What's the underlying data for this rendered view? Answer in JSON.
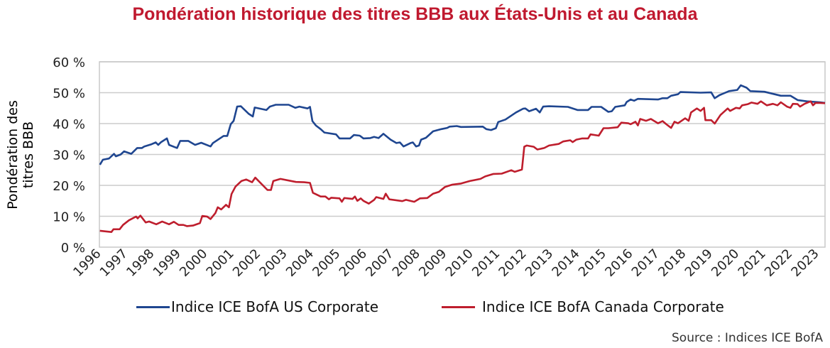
{
  "chart_data": {
    "type": "line",
    "title": "Pondération historique des titres BBB aux États-Unis et au Canada",
    "ylabel": [
      "Pondération des",
      "titres BBB"
    ],
    "xlabel": "",
    "ylim": [
      0,
      60
    ],
    "xlim": [
      1996,
      2023.29
    ],
    "yticks": [
      0,
      10,
      20,
      30,
      40,
      50,
      60
    ],
    "ytick_labels": [
      "0 %",
      "10 %",
      "20 %",
      "30 %",
      "40 %",
      "50 %",
      "60 %"
    ],
    "xtick_labels": [
      "1996",
      "1997",
      "1998",
      "1999",
      "2000",
      "2001",
      "2002",
      "2003",
      "2004",
      "2005",
      "2006",
      "2007",
      "2008",
      "2009",
      "2010",
      "2011",
      "2012",
      "2013",
      "2014",
      "2015",
      "2016",
      "2017",
      "2018",
      "2019",
      "2020",
      "2021",
      "2022",
      "2023"
    ],
    "grid": true,
    "legend_position": "bottom",
    "source": "Source : Indices ICE BofA",
    "series": [
      {
        "name": "Indice ICE BofA US Corporate",
        "color": "#1f4690",
        "x": [
          1996.02,
          1996.13,
          1996.36,
          1996.55,
          1996.62,
          1996.8,
          1996.93,
          1997.2,
          1997.42,
          1997.6,
          1997.69,
          1997.96,
          1998.12,
          1998.21,
          1998.32,
          1998.54,
          1998.62,
          1998.92,
          1999.04,
          1999.34,
          1999.6,
          1999.83,
          2000.18,
          2000.27,
          2000.67,
          2000.81,
          2000.94,
          2001.05,
          2001.18,
          2001.32,
          2001.61,
          2001.77,
          2001.84,
          2002.28,
          2002.41,
          2002.63,
          2003.12,
          2003.37,
          2003.52,
          2003.83,
          2003.92,
          2004.01,
          2004.14,
          2004.32,
          2004.46,
          2004.9,
          2005.03,
          2005.43,
          2005.57,
          2005.79,
          2005.93,
          2006.19,
          2006.33,
          2006.5,
          2006.68,
          2006.95,
          2007.17,
          2007.3,
          2007.44,
          2007.7,
          2007.79,
          2007.91,
          2008.02,
          2008.1,
          2008.28,
          2008.55,
          2008.86,
          2009.08,
          2009.17,
          2009.44,
          2009.6,
          2010.42,
          2010.55,
          2010.73,
          2010.91,
          2011.0,
          2011.27,
          2011.67,
          2011.93,
          2012.02,
          2012.16,
          2012.42,
          2012.56,
          2012.69,
          2012.91,
          2013.62,
          2013.98,
          2014.38,
          2014.51,
          2014.87,
          2015.14,
          2015.27,
          2015.4,
          2015.76,
          2015.83,
          2015.98,
          2016.11,
          2016.25,
          2017.01,
          2017.18,
          2017.36,
          2017.5,
          2017.76,
          2017.85,
          2018.61,
          2019.01,
          2019.14,
          2019.32,
          2019.68,
          2019.99,
          2020.12,
          2020.34,
          2020.48,
          2021.01,
          2021.63,
          2021.99,
          2022.26,
          2022.61,
          2023.1,
          2023.29
        ],
        "y": [
          26.7,
          28.3,
          28.7,
          30.2,
          29.4,
          30.0,
          31.0,
          30.2,
          32.1,
          32.1,
          32.6,
          33.3,
          33.9,
          33.1,
          34.0,
          35.2,
          33.1,
          32.1,
          34.4,
          34.4,
          33.1,
          33.8,
          32.6,
          33.7,
          36.0,
          36.0,
          39.8,
          40.9,
          45.5,
          45.6,
          43.2,
          42.3,
          45.2,
          44.4,
          45.5,
          46.1,
          46.1,
          45.1,
          45.5,
          44.9,
          45.4,
          40.8,
          39.4,
          38.2,
          37.1,
          36.5,
          35.2,
          35.2,
          36.3,
          36.1,
          35.2,
          35.3,
          35.7,
          35.3,
          36.7,
          34.8,
          33.7,
          33.9,
          32.6,
          33.7,
          33.9,
          32.6,
          32.9,
          34.8,
          35.4,
          37.5,
          38.2,
          38.6,
          39.0,
          39.2,
          38.9,
          39.0,
          38.2,
          37.9,
          38.5,
          40.5,
          41.3,
          43.6,
          44.8,
          44.9,
          44.0,
          44.8,
          43.6,
          45.5,
          45.6,
          45.4,
          44.4,
          44.4,
          45.4,
          45.4,
          43.8,
          44.0,
          45.4,
          45.9,
          47.0,
          47.8,
          47.4,
          48.0,
          47.8,
          48.2,
          48.2,
          49.0,
          49.5,
          50.2,
          50.0,
          50.1,
          48.2,
          49.2,
          50.5,
          50.9,
          52.4,
          51.6,
          50.5,
          50.3,
          49.0,
          49.0,
          47.6,
          47.2,
          46.9,
          46.7
        ]
      },
      {
        "name": "Indice ICE BofA Canada Corporate",
        "color": "#be1e2d",
        "x": [
          1996.02,
          1996.45,
          1996.53,
          1996.76,
          1996.89,
          1997.11,
          1997.38,
          1997.44,
          1997.54,
          1997.74,
          1997.87,
          1998.14,
          1998.36,
          1998.62,
          1998.8,
          1998.98,
          1999.16,
          1999.29,
          1999.52,
          1999.78,
          1999.87,
          2000.05,
          2000.18,
          2000.36,
          2000.45,
          2000.58,
          2000.76,
          2000.87,
          2000.97,
          2001.12,
          2001.34,
          2001.52,
          2001.74,
          2001.86,
          2002.32,
          2002.45,
          2002.54,
          2002.81,
          2003.39,
          2003.7,
          2003.92,
          2004.03,
          2004.32,
          2004.5,
          2004.63,
          2004.72,
          2005.03,
          2005.12,
          2005.21,
          2005.52,
          2005.61,
          2005.7,
          2005.83,
          2005.93,
          2006.13,
          2006.33,
          2006.41,
          2006.68,
          2006.77,
          2006.9,
          2007.39,
          2007.53,
          2007.84,
          2008.06,
          2008.33,
          2008.55,
          2008.77,
          2009.0,
          2009.26,
          2009.6,
          2009.93,
          2010.33,
          2010.51,
          2010.82,
          2011.13,
          2011.49,
          2011.62,
          2011.89,
          2011.98,
          2012.07,
          2012.33,
          2012.47,
          2012.73,
          2012.91,
          2013.27,
          2013.44,
          2013.71,
          2013.8,
          2013.94,
          2014.16,
          2014.38,
          2014.47,
          2014.78,
          2014.96,
          2015.14,
          2015.49,
          2015.63,
          2015.89,
          2015.98,
          2016.16,
          2016.25,
          2016.34,
          2016.56,
          2016.74,
          2017.01,
          2017.18,
          2017.32,
          2017.5,
          2017.63,
          2017.76,
          2018.03,
          2018.16,
          2018.25,
          2018.47,
          2018.61,
          2018.74,
          2018.79,
          2019.01,
          2019.14,
          2019.36,
          2019.63,
          2019.72,
          2019.94,
          2020.08,
          2020.17,
          2020.39,
          2020.52,
          2020.75,
          2020.88,
          2021.1,
          2021.33,
          2021.5,
          2021.63,
          2021.86,
          2021.99,
          2022.08,
          2022.26,
          2022.35,
          2022.52,
          2022.75,
          2022.84,
          2022.93,
          2023.1,
          2023.29
        ],
        "y": [
          5.3,
          4.9,
          5.8,
          5.8,
          7.2,
          8.7,
          9.9,
          9.3,
          10.2,
          8.0,
          8.3,
          7.4,
          8.3,
          7.4,
          8.2,
          7.2,
          7.2,
          6.8,
          7.0,
          7.8,
          10.1,
          9.9,
          9.1,
          11.0,
          12.9,
          12.2,
          13.7,
          12.9,
          17.2,
          19.6,
          21.4,
          21.9,
          21.0,
          22.5,
          18.5,
          18.5,
          21.4,
          22.1,
          21.1,
          21.0,
          20.8,
          17.6,
          16.4,
          16.4,
          15.5,
          16.0,
          15.8,
          14.7,
          15.9,
          15.6,
          16.4,
          15.0,
          15.8,
          15.0,
          14.1,
          15.3,
          16.2,
          15.6,
          17.3,
          15.5,
          14.9,
          15.3,
          14.7,
          15.8,
          15.9,
          17.3,
          17.9,
          19.5,
          20.2,
          20.6,
          21.4,
          22.1,
          22.9,
          23.7,
          23.8,
          24.9,
          24.4,
          25.1,
          32.5,
          32.9,
          32.5,
          31.6,
          32.1,
          32.9,
          33.4,
          34.2,
          34.6,
          34.0,
          34.8,
          35.2,
          35.2,
          36.5,
          36.1,
          38.5,
          38.5,
          38.8,
          40.3,
          40.1,
          39.8,
          40.6,
          39.4,
          41.5,
          40.9,
          41.5,
          40.1,
          40.8,
          39.8,
          38.6,
          40.6,
          40.1,
          41.7,
          40.9,
          43.6,
          44.9,
          44.1,
          45.1,
          41.1,
          41.1,
          40.0,
          42.8,
          44.9,
          44.1,
          45.1,
          44.9,
          45.9,
          46.3,
          46.8,
          46.4,
          47.2,
          45.9,
          46.4,
          45.9,
          46.9,
          45.5,
          45.1,
          46.4,
          46.3,
          45.5,
          46.4,
          47.2,
          45.9,
          46.7,
          46.7,
          46.6
        ]
      }
    ]
  }
}
